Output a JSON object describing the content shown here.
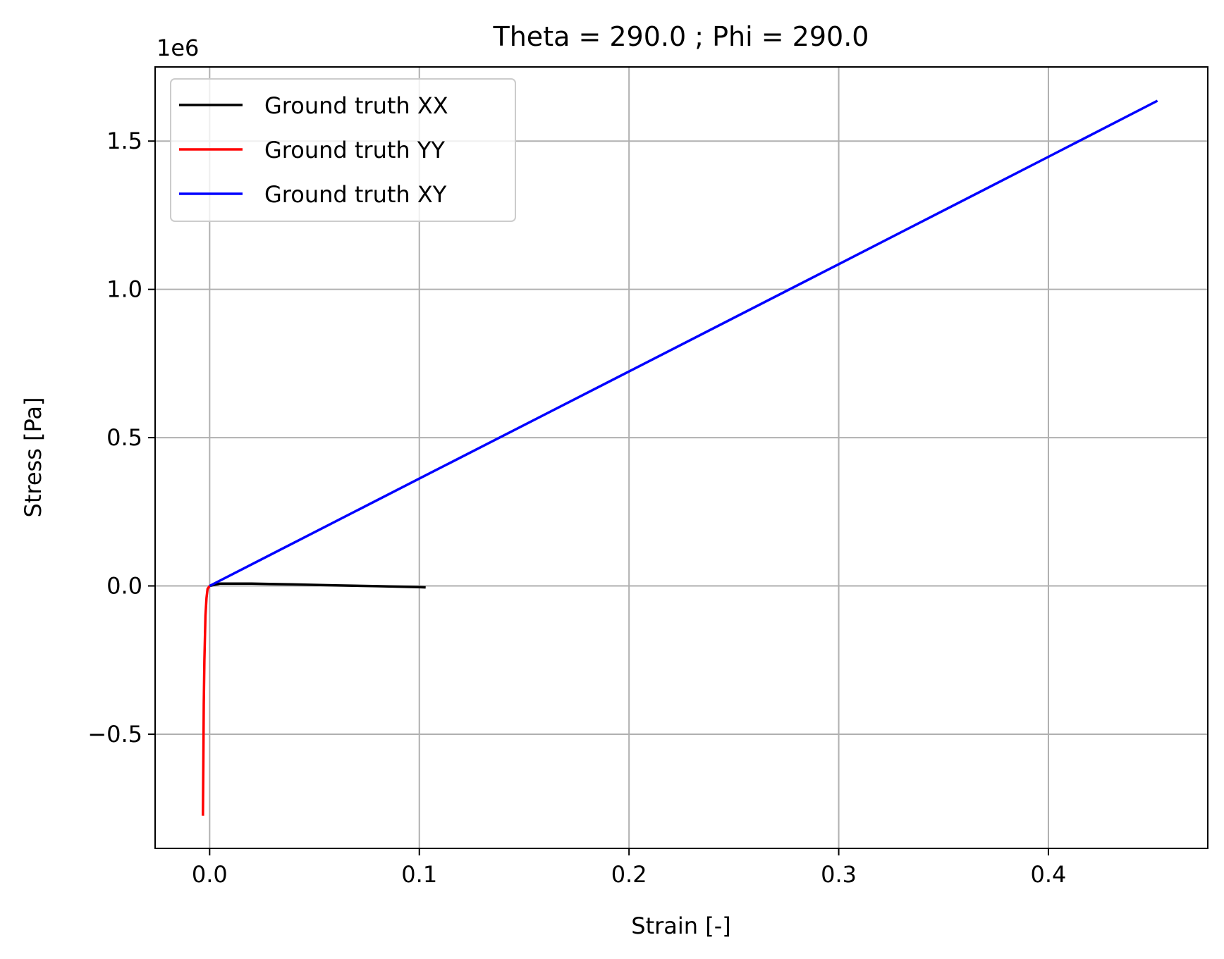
{
  "chart_data": {
    "type": "line",
    "title": "Theta = 290.0 ; Phi = 290.0",
    "xlabel": "Strain [-]",
    "ylabel": "Stress [Pa]",
    "y_scale_label": "1e6",
    "xlim": [
      -0.026,
      0.476
    ],
    "ylim": [
      -0.885,
      1.75
    ],
    "x_ticks": [
      0.0,
      0.1,
      0.2,
      0.3,
      0.4
    ],
    "x_tick_labels": [
      "0.0",
      "0.1",
      "0.2",
      "0.3",
      "0.4"
    ],
    "y_ticks": [
      -0.5,
      0.0,
      0.5,
      1.0,
      1.5
    ],
    "y_tick_labels": [
      "−0.5",
      "0.0",
      "0.5",
      "1.0",
      "1.5"
    ],
    "grid": true,
    "legend_position": "upper-left",
    "series": [
      {
        "name": "Ground truth XX",
        "color": "#000000",
        "x": [
          0.0,
          0.005,
          0.02,
          0.04,
          0.06,
          0.08,
          0.1,
          0.103
        ],
        "y": [
          0.0,
          0.008,
          0.008,
          0.005,
          0.002,
          -0.001,
          -0.004,
          -0.005
        ]
      },
      {
        "name": "Ground truth YY",
        "color": "#ff0000",
        "x": [
          0.0,
          -0.001,
          -0.0015,
          -0.002,
          -0.0025,
          -0.0028,
          -0.003,
          -0.0032
        ],
        "y": [
          0.0,
          -0.01,
          -0.04,
          -0.1,
          -0.25,
          -0.4,
          -0.6,
          -0.775
        ]
      },
      {
        "name": "Ground truth XY",
        "color": "#0000ff",
        "x": [
          0.0,
          0.1,
          0.2,
          0.3,
          0.4,
          0.452
        ],
        "y": [
          0.0,
          0.362,
          0.723,
          1.085,
          1.447,
          1.636
        ]
      }
    ]
  }
}
